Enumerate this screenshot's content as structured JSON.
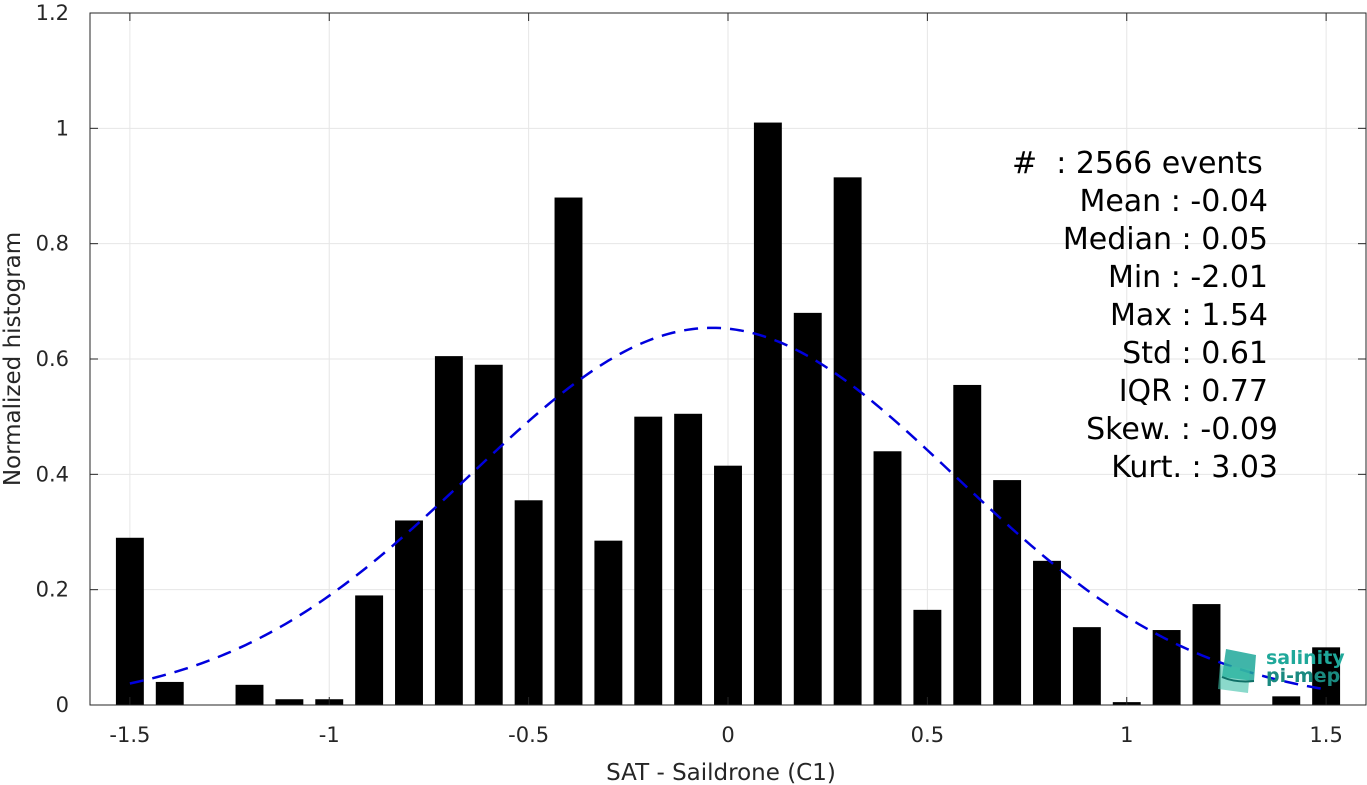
{
  "chart_data": {
    "type": "bar",
    "xlabel": "SAT - Saildrone (C1)",
    "ylabel": "Normalized histogram",
    "xlim": [
      -1.6,
      1.6
    ],
    "ylim": [
      0,
      1.2
    ],
    "xticks": [
      "-1.5",
      "-1",
      "-0.5",
      "0",
      "0.5",
      "1",
      "1.5"
    ],
    "xtick_values": [
      -1.5,
      -1,
      -0.5,
      0,
      0.5,
      1,
      1.5
    ],
    "yticks": [
      "0",
      "0.2",
      "0.4",
      "0.6",
      "0.8",
      "1",
      "1.2"
    ],
    "ytick_values": [
      0,
      0.2,
      0.4,
      0.6,
      0.8,
      1.0,
      1.2
    ],
    "grid": true,
    "bar_color": "#000000",
    "bins": [
      -1.5,
      -1.4,
      -1.3,
      -1.2,
      -1.1,
      -1.0,
      -0.9,
      -0.8,
      -0.7,
      -0.6,
      -0.5,
      -0.4,
      -0.3,
      -0.2,
      -0.1,
      0.0,
      0.1,
      0.2,
      0.3,
      0.4,
      0.5,
      0.6,
      0.7,
      0.8,
      0.9,
      1.0,
      1.1,
      1.2,
      1.3,
      1.4,
      1.5
    ],
    "values": [
      0.29,
      0.04,
      0.0,
      0.035,
      0.01,
      0.01,
      0.19,
      0.32,
      0.605,
      0.59,
      0.355,
      0.88,
      0.285,
      0.5,
      0.505,
      0.415,
      1.01,
      0.68,
      0.915,
      0.44,
      0.165,
      0.555,
      0.39,
      0.25,
      0.135,
      0.005,
      0.13,
      0.175,
      0.0,
      0.015,
      0.1
    ],
    "fit": {
      "style": "dashed",
      "color": "#0000dd",
      "mean": -0.04,
      "std": 0.61,
      "x_range": [
        -1.5,
        1.5
      ]
    },
    "stats": [
      "#  : 2566 events",
      "Mean : -0.04",
      "Median : 0.05",
      "Min : -2.01",
      "Max : 1.54",
      "Std : 0.61",
      "IQR : 0.77",
      "Skew. : -0.09",
      "Kurt. : 3.03"
    ]
  },
  "logo": {
    "line1": "salinity",
    "line2": "pi-mep",
    "color": "#1fa89a"
  }
}
